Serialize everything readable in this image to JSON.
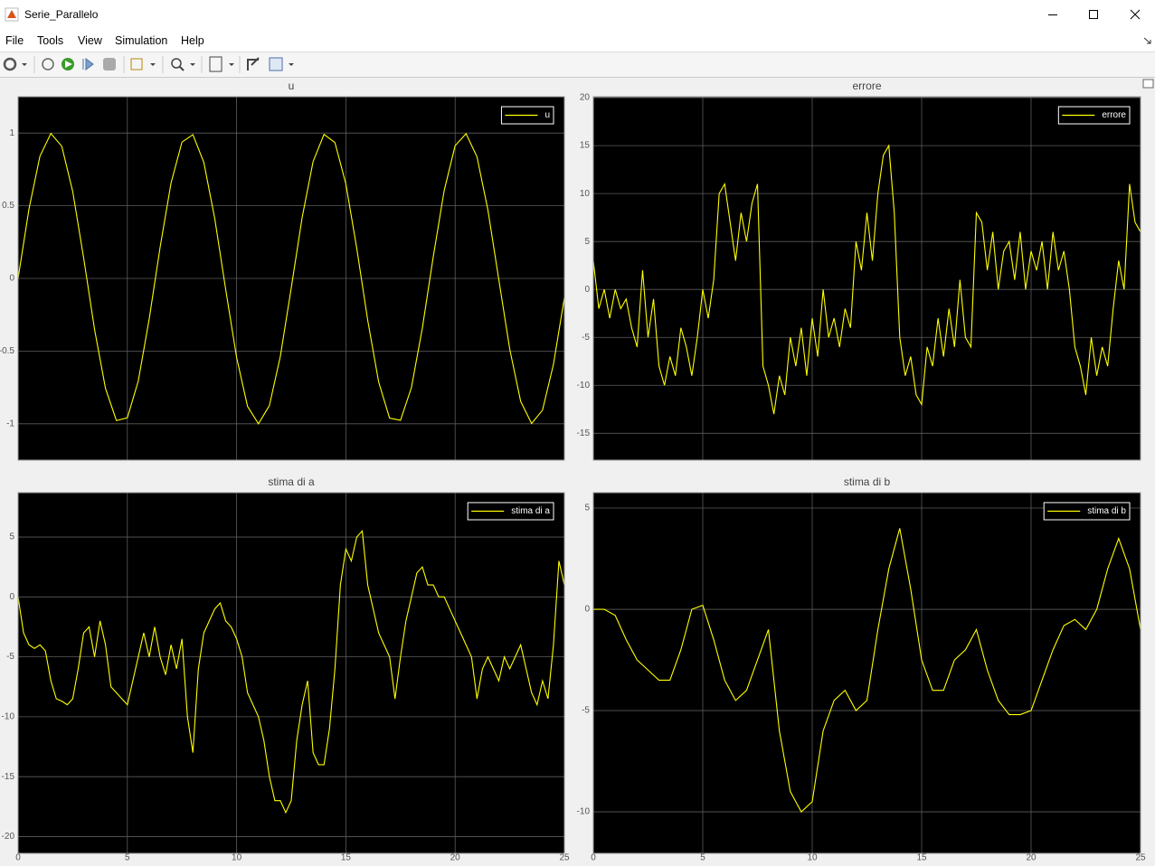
{
  "window": {
    "title": "Serie_Parallelo"
  },
  "menu": [
    "File",
    "Tools",
    "View",
    "Simulation",
    "Help"
  ],
  "chart_data": [
    {
      "type": "line",
      "title": "u",
      "xlim": [
        0,
        25
      ],
      "xticks": [
        0,
        5,
        10,
        15,
        20,
        25
      ],
      "show_xtick_labels": false,
      "ylim": [
        -1.25,
        1.25
      ],
      "yticks": [
        -1,
        -0.5,
        0,
        0.5,
        1
      ],
      "grid": true,
      "legend": "upper right",
      "x": [
        0,
        0.5,
        1,
        1.5,
        2,
        2.5,
        3,
        3.5,
        4,
        4.5,
        5,
        5.5,
        6,
        6.5,
        7,
        7.5,
        8,
        8.5,
        9,
        9.5,
        10,
        10.5,
        11,
        11.5,
        12,
        12.5,
        13,
        13.5,
        14,
        14.5,
        15,
        15.5,
        16,
        16.5,
        17,
        17.5,
        18,
        18.5,
        19,
        19.5,
        20,
        20.5,
        21,
        21.5,
        22,
        22.5,
        23,
        23.5,
        24,
        24.5,
        25
      ],
      "series": [
        {
          "name": "u",
          "color": "#ffff00",
          "values": [
            0,
            0.479,
            0.841,
            0.997,
            0.909,
            0.598,
            0.141,
            -0.351,
            -0.757,
            -0.978,
            -0.959,
            -0.706,
            -0.279,
            0.215,
            0.657,
            0.938,
            0.989,
            0.798,
            0.412,
            -0.075,
            -0.544,
            -0.88,
            -1,
            -0.875,
            -0.537,
            -0.066,
            0.42,
            0.804,
            0.991,
            0.935,
            0.65,
            0.206,
            -0.288,
            -0.712,
            -0.961,
            -0.976,
            -0.751,
            -0.342,
            0.15,
            0.605,
            0.913,
            0.996,
            0.837,
            0.471,
            -0.009,
            -0.487,
            -0.846,
            -0.998,
            -0.906,
            -0.591,
            -0.132
          ]
        }
      ]
    },
    {
      "type": "line",
      "title": "errore",
      "xlim": [
        0,
        25
      ],
      "xticks": [
        0,
        5,
        10,
        15,
        20,
        25
      ],
      "show_xtick_labels": false,
      "ylim": [
        -17.8,
        20.1
      ],
      "yticks": [
        -15,
        -10,
        -5,
        0,
        5,
        10,
        15,
        20
      ],
      "grid": true,
      "legend": "upper right",
      "x": [
        0,
        0.25,
        0.5,
        0.75,
        1,
        1.25,
        1.5,
        1.75,
        2,
        2.25,
        2.5,
        2.75,
        3,
        3.25,
        3.5,
        3.75,
        4,
        4.25,
        4.5,
        4.75,
        5,
        5.25,
        5.5,
        5.75,
        6,
        6.25,
        6.5,
        6.75,
        7,
        7.25,
        7.5,
        7.75,
        8,
        8.25,
        8.5,
        8.75,
        9,
        9.25,
        9.5,
        9.75,
        10,
        10.25,
        10.5,
        10.75,
        11,
        11.25,
        11.5,
        11.75,
        12,
        12.25,
        12.5,
        12.75,
        13,
        13.25,
        13.5,
        13.75,
        14,
        14.25,
        14.5,
        14.75,
        15,
        15.25,
        15.5,
        15.75,
        16,
        16.25,
        16.5,
        16.75,
        17,
        17.25,
        17.5,
        17.75,
        18,
        18.25,
        18.5,
        18.75,
        19,
        19.25,
        19.5,
        19.75,
        20,
        20.25,
        20.5,
        20.75,
        21,
        21.25,
        21.5,
        21.75,
        22,
        22.25,
        22.5,
        22.75,
        23,
        23.25,
        23.5,
        23.75,
        24,
        24.25,
        24.5,
        24.75,
        25
      ],
      "series": [
        {
          "name": "errore",
          "color": "#ffff00",
          "values": [
            3,
            -2,
            0,
            -3,
            0,
            -2,
            -1,
            -4,
            -6,
            2,
            -5,
            -1,
            -8,
            -10,
            -7,
            -9,
            -4,
            -6,
            -9,
            -5,
            0,
            -3,
            1,
            10,
            11,
            7,
            3,
            8,
            5,
            9,
            11,
            -8,
            -10,
            -13,
            -9,
            -11,
            -5,
            -8,
            -4,
            -9,
            -3,
            -7,
            0,
            -5,
            -3,
            -6,
            -2,
            -4,
            5,
            2,
            8,
            3,
            10,
            14,
            15,
            8,
            -5,
            -9,
            -7,
            -11,
            -12,
            -6,
            -8,
            -3,
            -7,
            -2,
            -6,
            1,
            -5,
            -6,
            8,
            7,
            2,
            6,
            0,
            4,
            5,
            1,
            6,
            0,
            4,
            2,
            5,
            0,
            6,
            2,
            4,
            0,
            -6,
            -8,
            -11,
            -5,
            -9,
            -6,
            -8,
            -2,
            3,
            0,
            11,
            7,
            6
          ]
        }
      ]
    },
    {
      "type": "line",
      "title": "stima di a",
      "xlim": [
        0,
        25
      ],
      "xticks": [
        0,
        5,
        10,
        15,
        20,
        25
      ],
      "show_xtick_labels": true,
      "ylim": [
        -21.4,
        8.7
      ],
      "yticks": [
        -20,
        -15,
        -10,
        -5,
        0,
        5
      ],
      "grid": true,
      "legend": "upper right",
      "x": [
        0,
        0.25,
        0.5,
        0.75,
        1,
        1.25,
        1.5,
        1.75,
        2,
        2.25,
        2.5,
        2.75,
        3,
        3.25,
        3.5,
        3.75,
        4,
        4.25,
        4.5,
        4.75,
        5,
        5.25,
        5.5,
        5.75,
        6,
        6.25,
        6.5,
        6.75,
        7,
        7.25,
        7.5,
        7.75,
        8,
        8.25,
        8.5,
        8.75,
        9,
        9.25,
        9.5,
        9.75,
        10,
        10.25,
        10.5,
        10.75,
        11,
        11.25,
        11.5,
        11.75,
        12,
        12.25,
        12.5,
        12.75,
        13,
        13.25,
        13.5,
        13.75,
        14,
        14.25,
        14.5,
        14.75,
        15,
        15.25,
        15.5,
        15.75,
        16,
        16.25,
        16.5,
        16.75,
        17,
        17.25,
        17.5,
        17.75,
        18,
        18.25,
        18.5,
        18.75,
        19,
        19.25,
        19.5,
        19.75,
        20,
        20.25,
        20.5,
        20.75,
        21,
        21.25,
        21.5,
        21.75,
        22,
        22.25,
        22.5,
        22.75,
        23,
        23.25,
        23.5,
        23.75,
        24,
        24.25,
        24.5,
        24.75,
        25
      ],
      "series": [
        {
          "name": "stima di a",
          "color": "#ffff00",
          "values": [
            0,
            -3,
            -4,
            -4.3,
            -4,
            -4.5,
            -7,
            -8.5,
            -8.7,
            -9,
            -8.5,
            -6,
            -3,
            -2.5,
            -5,
            -2,
            -4,
            -7.5,
            -8,
            -8.5,
            -9,
            -7,
            -5,
            -3,
            -5,
            -2.5,
            -5,
            -6.5,
            -4,
            -6,
            -3.5,
            -10,
            -13,
            -6,
            -3,
            -2,
            -1,
            -0.5,
            -2,
            -2.5,
            -3.5,
            -5,
            -8,
            -9,
            -10,
            -12,
            -15,
            -17,
            -17,
            -18,
            -17,
            -12,
            -9,
            -7,
            -13,
            -14,
            -14,
            -11,
            -6,
            1,
            4,
            3,
            5,
            5.5,
            1,
            -1,
            -3,
            -4,
            -5,
            -8.5,
            -5,
            -2,
            0,
            2,
            2.5,
            1,
            1,
            0,
            0,
            -1,
            -2,
            -3,
            -4,
            -5,
            -8.5,
            -6,
            -5,
            -6,
            -7,
            -5,
            -6,
            -5,
            -4,
            -6,
            -8,
            -9,
            -7,
            -8.5,
            -4,
            3,
            1
          ]
        }
      ]
    },
    {
      "type": "line",
      "title": "stima di b",
      "xlim": [
        0,
        25
      ],
      "xticks": [
        0,
        5,
        10,
        15,
        20,
        25
      ],
      "show_xtick_labels": true,
      "ylim": [
        -12.05,
        5.76
      ],
      "yticks": [
        -10,
        -5,
        0,
        5
      ],
      "grid": true,
      "legend": "upper right",
      "x": [
        0,
        0.5,
        1,
        1.5,
        2,
        2.5,
        3,
        3.5,
        4,
        4.5,
        5,
        5.5,
        6,
        6.5,
        7,
        7.5,
        8,
        8.5,
        9,
        9.5,
        10,
        10.5,
        11,
        11.5,
        12,
        12.5,
        13,
        13.5,
        14,
        14.5,
        15,
        15.5,
        16,
        16.5,
        17,
        17.5,
        18,
        18.5,
        19,
        19.5,
        20,
        20.5,
        21,
        21.5,
        22,
        22.5,
        23,
        23.5,
        24,
        24.5,
        25
      ],
      "series": [
        {
          "name": "stima di b",
          "color": "#ffff00",
          "values": [
            0,
            0,
            -0.3,
            -1.5,
            -2.5,
            -3,
            -3.5,
            -3.5,
            -2,
            0,
            0.2,
            -1.5,
            -3.5,
            -4.5,
            -4,
            -2.5,
            -1,
            -6,
            -9,
            -10,
            -9.5,
            -6,
            -4.5,
            -4,
            -5,
            -4.5,
            -1,
            2,
            4,
            1,
            -2.5,
            -4,
            -4,
            -2.5,
            -2,
            -1,
            -3,
            -4.5,
            -5.2,
            -5.2,
            -5,
            -3.5,
            -2,
            -0.8,
            -0.5,
            -1,
            0,
            2,
            3.5,
            2,
            -1
          ]
        }
      ]
    }
  ]
}
